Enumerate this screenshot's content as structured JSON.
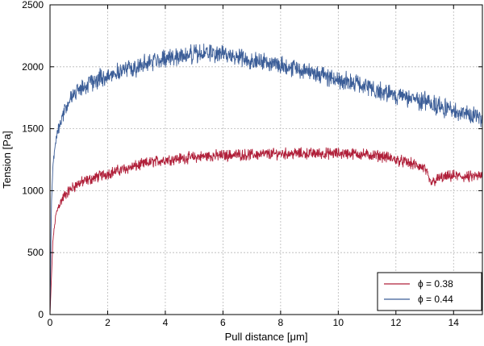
{
  "chart_data": {
    "type": "line",
    "xlabel": "Pull distance [μm]",
    "ylabel": "Tension [Pa]",
    "xlim": [
      0,
      15
    ],
    "ylim": [
      0,
      2500
    ],
    "xticks": [
      0,
      2,
      4,
      6,
      8,
      10,
      12,
      14
    ],
    "yticks": [
      0,
      500,
      1000,
      1500,
      2000,
      2500
    ],
    "grid": true,
    "legend_position": "bottom-right",
    "series": [
      {
        "name": "ϕ = 0.38",
        "color": "#b0203a",
        "x": [
          0,
          0.05,
          0.1,
          0.2,
          0.3,
          0.5,
          0.75,
          1,
          1.5,
          2,
          2.5,
          3,
          3.5,
          4,
          4.5,
          5,
          5.5,
          6,
          6.5,
          7,
          7.5,
          8,
          8.5,
          9,
          9.5,
          10,
          10.5,
          11,
          11.5,
          12,
          12.5,
          13,
          13.2,
          13.5,
          14,
          14.5,
          15
        ],
        "y": [
          0,
          300,
          600,
          800,
          880,
          960,
          1020,
          1060,
          1100,
          1140,
          1170,
          1200,
          1230,
          1250,
          1260,
          1270,
          1280,
          1285,
          1290,
          1290,
          1295,
          1300,
          1300,
          1300,
          1300,
          1300,
          1300,
          1290,
          1280,
          1250,
          1220,
          1180,
          1060,
          1100,
          1120,
          1110,
          1120
        ]
      },
      {
        "name": "ϕ = 0.44",
        "color": "#3c5e98",
        "x": [
          0,
          0.05,
          0.1,
          0.2,
          0.3,
          0.5,
          0.75,
          1,
          1.5,
          2,
          2.5,
          3,
          3.5,
          4,
          4.5,
          5,
          5.5,
          6,
          6.5,
          7,
          7.5,
          8,
          8.5,
          9,
          9.5,
          10,
          10.5,
          11,
          11.5,
          12,
          12.5,
          13,
          13.5,
          14,
          14.5,
          15
        ],
        "y": [
          0,
          900,
          1200,
          1400,
          1520,
          1650,
          1750,
          1820,
          1880,
          1930,
          1970,
          2000,
          2040,
          2070,
          2090,
          2100,
          2110,
          2100,
          2080,
          2060,
          2040,
          2020,
          1990,
          1960,
          1930,
          1900,
          1870,
          1830,
          1800,
          1770,
          1740,
          1720,
          1680,
          1640,
          1620,
          1590
        ]
      }
    ]
  }
}
